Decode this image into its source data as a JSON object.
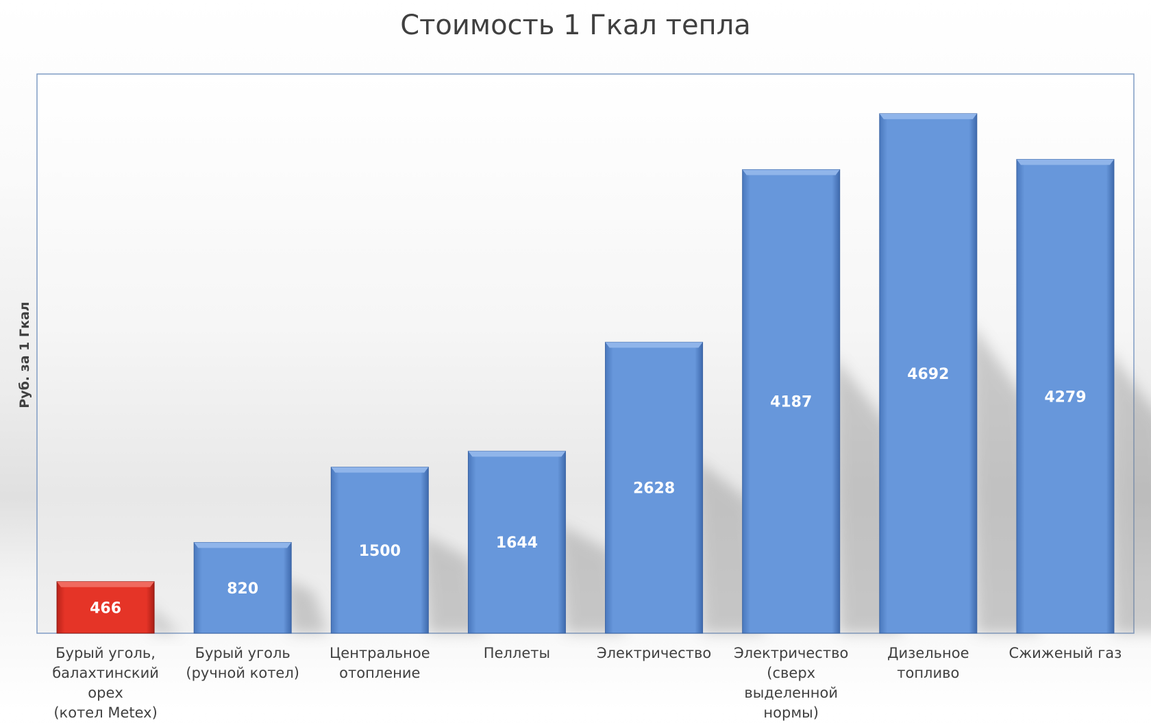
{
  "chart_data": {
    "type": "bar",
    "title": "Стоимость 1 Гкал тепла",
    "xlabel": "",
    "ylabel": "Руб. за 1 Гкал",
    "ylim": [
      0,
      5050
    ],
    "grid": false,
    "categories": [
      "Бурый уголь,\nбалахтинский орех\n(котел Metex)",
      "Бурый уголь\n(ручной котел)",
      "Центральное\nотопление",
      "Пеллеты",
      "Электричество",
      "Электричество\n(сверх выделенной\nнормы)",
      "Дизельное топливо",
      "Сжиженый газ"
    ],
    "values": [
      466,
      820,
      1500,
      1644,
      2628,
      4187,
      4692,
      4279
    ],
    "data_labels": [
      "466",
      "820",
      "1500",
      "1644",
      "2628",
      "4187",
      "4692",
      "4279"
    ],
    "bar_colors": [
      "#e53427",
      "#6797db",
      "#6797db",
      "#6797db",
      "#6797db",
      "#6797db",
      "#6797db",
      "#6797db"
    ]
  }
}
